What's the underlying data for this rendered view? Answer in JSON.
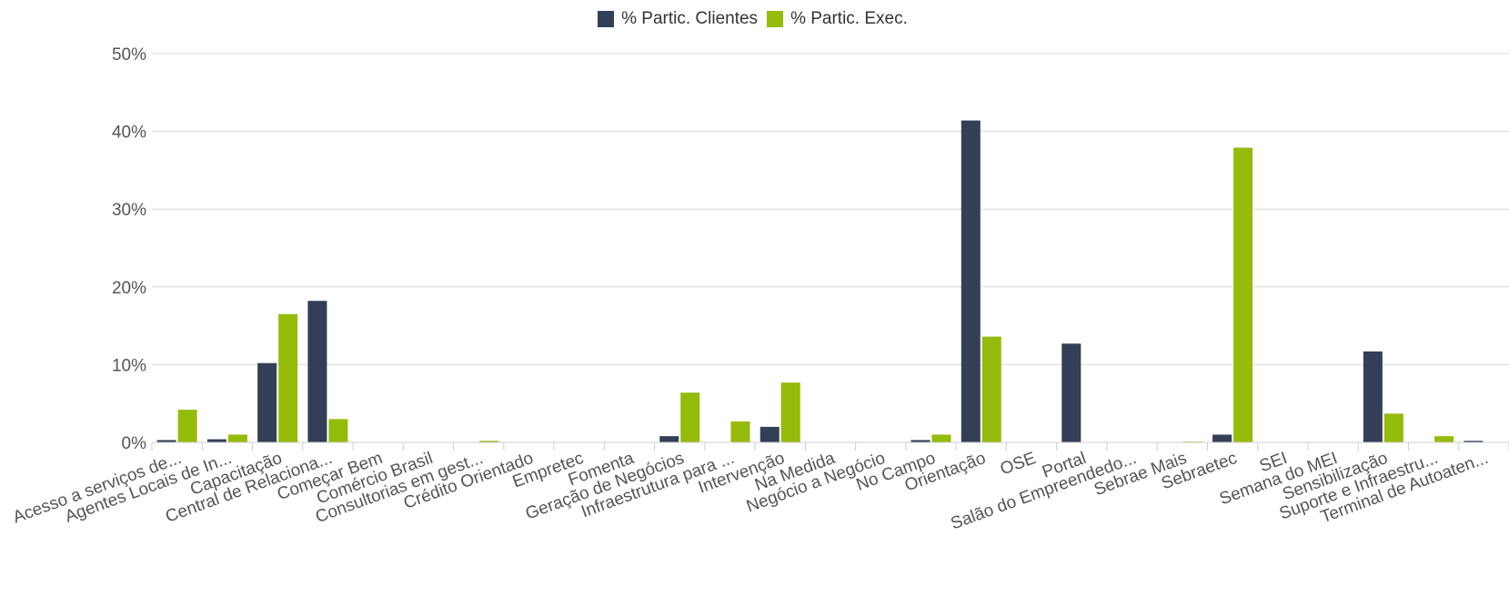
{
  "chart_data": {
    "type": "bar",
    "categories": [
      "Acesso a serviços de...",
      "Agentes Locais de In...",
      "Capacitação",
      "Central de Relaciona...",
      "Começar Bem",
      "Comércio Brasil",
      "Consultorias em gest...",
      "Crédito Orientado",
      "Empretec",
      "Fomenta",
      "Geração de Negócios",
      "Infraestrutura para ...",
      "Intervenção",
      "Na Medida",
      "Negócio a Negócio",
      "No Campo",
      "Orientação",
      "OSE",
      "Portal",
      "Salão do Empreendedo...",
      "Sebrae Mais",
      "Sebraetec",
      "SEI",
      "Semana do MEI",
      "Sensibilização",
      "Suporte e Infraestru...",
      "Terminal de Autoaten..."
    ],
    "series": [
      {
        "name": "% Partic. Clientes",
        "color": "#323f56",
        "values": [
          0.3,
          0.4,
          10.2,
          18.2,
          0,
          0,
          0,
          0,
          0,
          0,
          0.8,
          0,
          2.0,
          0,
          0,
          0.3,
          41.4,
          0,
          12.7,
          0,
          0,
          1.0,
          0,
          0,
          11.7,
          0,
          0.2
        ]
      },
      {
        "name": "% Partic. Exec.",
        "color": "#95bb0b",
        "values": [
          4.2,
          1.0,
          16.5,
          3.0,
          0,
          0,
          0.2,
          0,
          0,
          0,
          6.4,
          2.7,
          7.7,
          0,
          0,
          1.0,
          13.6,
          0,
          0,
          0,
          0.1,
          37.9,
          0,
          0,
          3.7,
          0.8,
          0
        ]
      }
    ],
    "y_ticks": [
      "0%",
      "10%",
      "20%",
      "30%",
      "40%",
      "50%"
    ],
    "ylim": [
      0,
      50
    ],
    "grid": true,
    "legend_position": "top-center",
    "title": "",
    "xlabel": "",
    "ylabel": ""
  }
}
